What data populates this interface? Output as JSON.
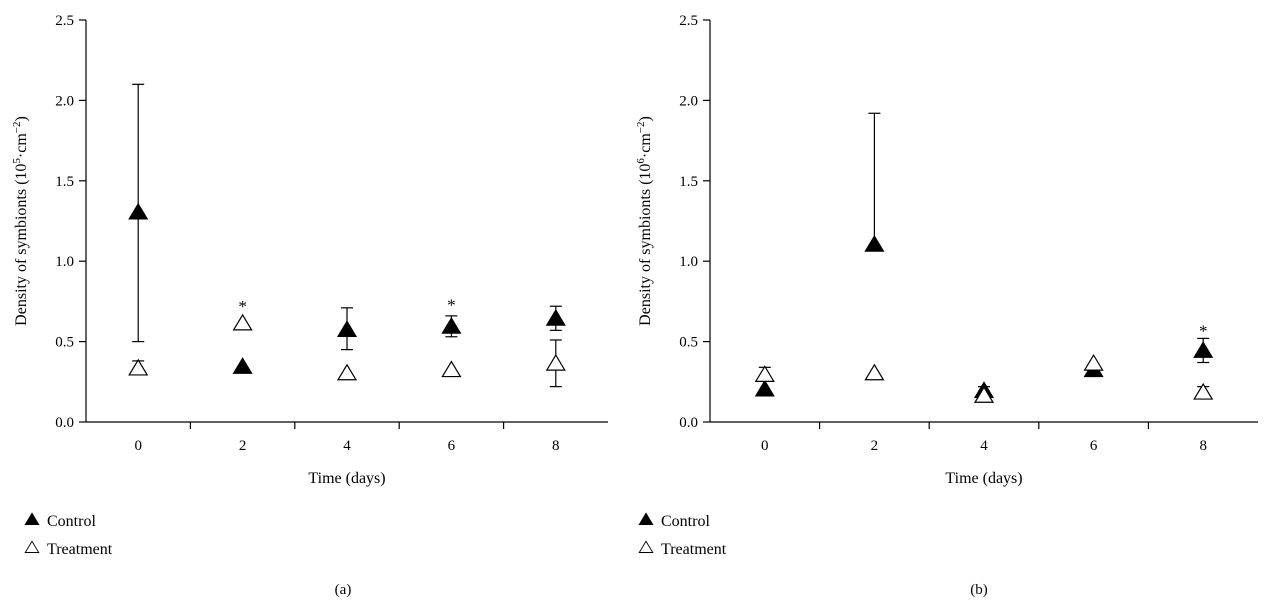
{
  "chart_data": [
    {
      "type": "scatter",
      "panel_label": "(a)",
      "xlabel": "Time (days)",
      "ylabel_main": "Density of symbionts (10",
      "ylabel_sup1": "5",
      "ylabel_mid": "·cm",
      "ylabel_sup2": "−2",
      "ylabel_end": ")",
      "xticks": [
        "0",
        "2",
        "4",
        "6",
        "8"
      ],
      "yticks": [
        "0.0",
        "0.5",
        "1.0",
        "1.5",
        "2.0",
        "2.5"
      ],
      "ylim": [
        0,
        2.5
      ],
      "grid": false,
      "legend_position": "below-left",
      "series": [
        {
          "name": "Control",
          "marker": "filled-triangle",
          "x": [
            0,
            2,
            4,
            6,
            8
          ],
          "y": [
            1.3,
            0.34,
            0.57,
            0.59,
            0.64
          ],
          "err_up": [
            0.8,
            0.0,
            0.14,
            0.07,
            0.08
          ],
          "err_down": [
            0.8,
            0.0,
            0.12,
            0.06,
            0.07
          ]
        },
        {
          "name": "Treatment",
          "marker": "open-triangle",
          "x": [
            0,
            2,
            4,
            6,
            8
          ],
          "y": [
            0.33,
            0.61,
            0.3,
            0.32,
            0.36
          ],
          "err_up": [
            0.05,
            0.0,
            0.0,
            0.0,
            0.15
          ],
          "err_down": [
            0.0,
            0.0,
            0.0,
            0.0,
            0.14
          ]
        }
      ],
      "annotations": [
        {
          "text": "*",
          "x": 2,
          "y": 0.72
        },
        {
          "text": "*",
          "x": 6,
          "y": 0.73
        }
      ]
    },
    {
      "type": "scatter",
      "panel_label": "(b)",
      "xlabel": "Time (days)",
      "ylabel_main": "Density of symbionts (10",
      "ylabel_sup1": "6",
      "ylabel_mid": "·cm",
      "ylabel_sup2": "−2",
      "ylabel_end": ")",
      "xticks": [
        "0",
        "2",
        "4",
        "6",
        "8"
      ],
      "yticks": [
        "0.0",
        "0.5",
        "1.0",
        "1.5",
        "2.0",
        "2.5"
      ],
      "ylim": [
        0,
        2.5
      ],
      "grid": false,
      "legend_position": "below-left",
      "series": [
        {
          "name": "Control",
          "marker": "filled-triangle",
          "x": [
            0,
            2,
            4,
            6,
            8
          ],
          "y": [
            0.2,
            1.1,
            0.19,
            0.32,
            0.44
          ],
          "err_up": [
            0.0,
            0.82,
            0.03,
            0.0,
            0.08
          ],
          "err_down": [
            0.0,
            0.0,
            0.02,
            0.0,
            0.07
          ]
        },
        {
          "name": "Treatment",
          "marker": "open-triangle",
          "x": [
            0,
            2,
            4,
            6,
            8
          ],
          "y": [
            0.29,
            0.3,
            0.16,
            0.36,
            0.18
          ],
          "err_up": [
            0.05,
            0.0,
            0.0,
            0.0,
            0.04
          ],
          "err_down": [
            0.0,
            0.0,
            0.0,
            0.0,
            0.0
          ]
        }
      ],
      "annotations": [
        {
          "text": "*",
          "x": 8,
          "y": 0.57
        }
      ]
    }
  ]
}
